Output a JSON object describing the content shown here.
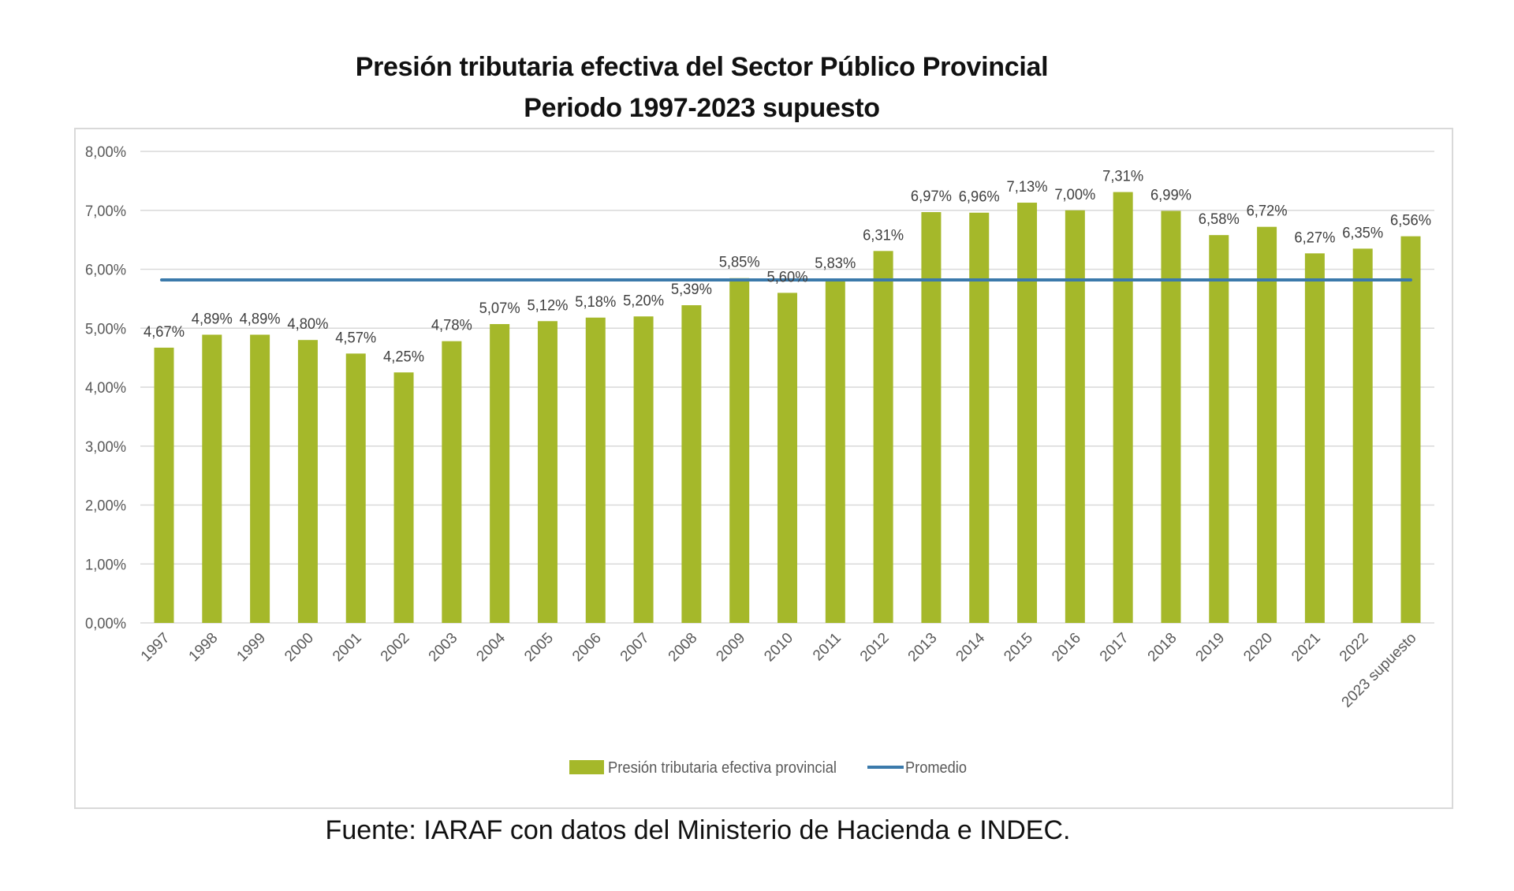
{
  "chart_data": {
    "type": "bar",
    "title": "Presión tributaria efectiva del Sector Público Provincial",
    "subtitle": "Periodo 1997-2023 supuesto",
    "xlabel": "",
    "ylabel": "",
    "ylim": [
      0,
      8
    ],
    "yticks": [
      "0,00%",
      "1,00%",
      "2,00%",
      "3,00%",
      "4,00%",
      "5,00%",
      "6,00%",
      "7,00%",
      "8,00%"
    ],
    "grid": true,
    "legend_position": "bottom",
    "categories": [
      "1997",
      "1998",
      "1999",
      "2000",
      "2001",
      "2002",
      "2003",
      "2004",
      "2005",
      "2006",
      "2007",
      "2008",
      "2009",
      "2010",
      "2011",
      "2012",
      "2013",
      "2014",
      "2015",
      "2016",
      "2017",
      "2018",
      "2019",
      "2020",
      "2021",
      "2022",
      "2023 supuesto"
    ],
    "series": [
      {
        "name": "Presión tributaria efectiva provincial",
        "type": "bar",
        "color": "#a5b82a",
        "values": [
          4.67,
          4.89,
          4.89,
          4.8,
          4.57,
          4.25,
          4.78,
          5.07,
          5.12,
          5.18,
          5.2,
          5.39,
          5.85,
          5.6,
          5.83,
          6.31,
          6.97,
          6.96,
          7.13,
          7.0,
          7.31,
          6.99,
          6.58,
          6.72,
          6.27,
          6.35,
          6.56
        ],
        "labels": [
          "4,67%",
          "4,89%",
          "4,89%",
          "4,80%",
          "4,57%",
          "4,25%",
          "4,78%",
          "5,07%",
          "5,12%",
          "5,18%",
          "5,20%",
          "5,39%",
          "5,85%",
          "5,60%",
          "5,83%",
          "6,31%",
          "6,97%",
          "6,96%",
          "7,13%",
          "7,00%",
          "7,31%",
          "6,99%",
          "6,58%",
          "6,72%",
          "6,27%",
          "6,35%",
          "6,56%"
        ]
      },
      {
        "name": "Promedio",
        "type": "line",
        "color": "#3b7aab",
        "value": 5.82
      }
    ]
  },
  "footer": "Fuente: IARAF con datos del Ministerio de Hacienda e INDEC."
}
